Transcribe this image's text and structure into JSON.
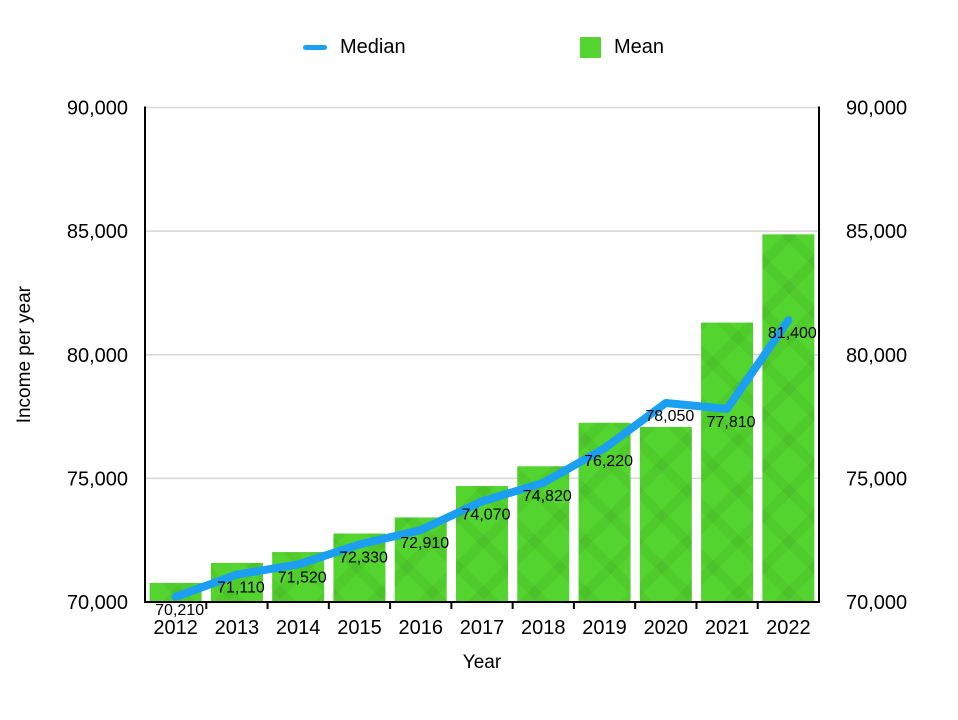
{
  "colors": {
    "median_line": "#1a9ff2",
    "mean_bar": "#53d42e",
    "gridline": "#d6d6d6",
    "axis": "#000000",
    "label_text": "#000000"
  },
  "chart_data": {
    "type": "bar+line combo",
    "categories": [
      "2012",
      "2013",
      "2014",
      "2015",
      "2016",
      "2017",
      "2018",
      "2019",
      "2020",
      "2021",
      "2022"
    ],
    "series": [
      {
        "name": "Median",
        "type": "line",
        "color": "#1a9ff2",
        "values": [
          70210,
          71110,
          71520,
          72330,
          72910,
          74070,
          74820,
          76220,
          78050,
          77810,
          81400
        ],
        "point_labels": [
          "70,210",
          "71,110",
          "71,520",
          "72,330",
          "72,910",
          "74,070",
          "74,820",
          "76,220",
          "78,050",
          "77,810",
          "81,400"
        ]
      },
      {
        "name": "Mean",
        "type": "bar",
        "color": "#53d42e",
        "values": [
          70770,
          71580,
          72020,
          72770,
          73420,
          74690,
          75490,
          77250,
          77080,
          81300,
          84870
        ]
      }
    ],
    "xlabel": "Year",
    "ylabel": "Income per year",
    "ylim": [
      70000,
      90000
    ],
    "yticks": [
      70000,
      75000,
      80000,
      85000,
      90000
    ],
    "ytick_labels": [
      "70,000",
      "75,000",
      "80,000",
      "85,000",
      "90,000"
    ],
    "y_axis_sides": "both",
    "grid": true,
    "legend_position": "top"
  }
}
